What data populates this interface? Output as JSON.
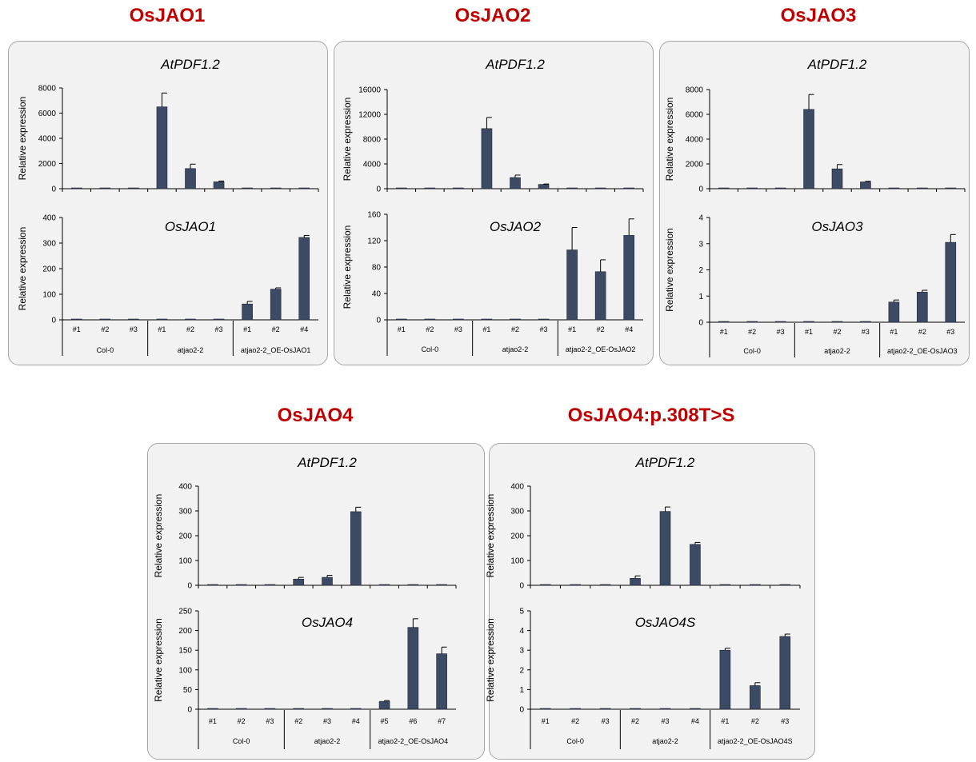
{
  "colors": {
    "title": "#c00000",
    "bar": "#3d4a63",
    "frame_bg": "#f2f2f2",
    "frame_border": "#a6a6a6"
  },
  "chart_data": [
    {
      "type": "bar",
      "title": "OsJAO1",
      "group_labels": [
        "Col-0",
        "atjao2-2",
        "atjao2-2_OE-OsJAO1"
      ],
      "categories": [
        "#1",
        "#2",
        "#3",
        "#1",
        "#2",
        "#3",
        "#1",
        "#2",
        "#4"
      ],
      "subplots": [
        {
          "title": "AtPDF1.2",
          "ylabel": "Relative expression",
          "ylim": [
            0,
            8000
          ],
          "yticks": [
            "0",
            "2000",
            "4000",
            "6000",
            "8000"
          ],
          "values": [
            30,
            30,
            30,
            6500,
            1600,
            550,
            20,
            20,
            20
          ],
          "errors": [
            0,
            0,
            0,
            1100,
            350,
            60,
            0,
            0,
            0
          ]
        },
        {
          "title": "OsJAO1",
          "ylabel": "Relative expression",
          "ylim": [
            0,
            400
          ],
          "yticks": [
            "0",
            "100",
            "200",
            "300",
            "400"
          ],
          "values": [
            1,
            1,
            1,
            1,
            1,
            1,
            62,
            120,
            322
          ],
          "errors": [
            0,
            0,
            0,
            0,
            0,
            0,
            10,
            5,
            8
          ]
        }
      ]
    },
    {
      "type": "bar",
      "title": "OsJAO2",
      "group_labels": [
        "Col-0",
        "atjao2-2",
        "atjao2-2_OE-OsJAO2"
      ],
      "categories": [
        "#1",
        "#2",
        "#3",
        "#1",
        "#2",
        "#3",
        "#1",
        "#2",
        "#4"
      ],
      "subplots": [
        {
          "title": "AtPDF1.2",
          "ylabel": "Relative expression",
          "ylim": [
            0,
            16000
          ],
          "yticks": [
            "0",
            "4000",
            "8000",
            "12000",
            "16000"
          ],
          "values": [
            60,
            60,
            60,
            9700,
            1800,
            700,
            40,
            40,
            40
          ],
          "errors": [
            0,
            0,
            0,
            1800,
            400,
            60,
            0,
            0,
            0
          ]
        },
        {
          "title": "OsJAO2",
          "ylabel": "Relative expression",
          "ylim": [
            0,
            160
          ],
          "yticks": [
            "0",
            "40",
            "80",
            "120",
            "160"
          ],
          "values": [
            1,
            1,
            1,
            1,
            1,
            1,
            106,
            73,
            128
          ],
          "errors": [
            0,
            0,
            0,
            0,
            0,
            0,
            34,
            18,
            25
          ]
        }
      ]
    },
    {
      "type": "bar",
      "title": "OsJAO3",
      "group_labels": [
        "Col-0",
        "atjao2-2",
        "atjao2-2_OE-OsJAO3"
      ],
      "categories": [
        "#1",
        "#2",
        "#3",
        "#1",
        "#2",
        "#3",
        "#1",
        "#2",
        "#3"
      ],
      "subplots": [
        {
          "title": "AtPDF1.2",
          "ylabel": "Relative expression",
          "ylim": [
            0,
            8000
          ],
          "yticks": [
            "0",
            "2000",
            "4000",
            "6000",
            "8000"
          ],
          "values": [
            30,
            30,
            30,
            6400,
            1600,
            550,
            20,
            20,
            20
          ],
          "errors": [
            0,
            0,
            0,
            1200,
            350,
            50,
            0,
            0,
            0
          ]
        },
        {
          "title": "OsJAO3",
          "ylabel": "Relative expression",
          "ylim": [
            0,
            4
          ],
          "yticks": [
            "0",
            "1",
            "2",
            "3",
            "4"
          ],
          "values": [
            0.01,
            0.01,
            0.01,
            0.01,
            0.01,
            0.01,
            0.77,
            1.15,
            3.05
          ],
          "errors": [
            0,
            0,
            0,
            0,
            0,
            0,
            0.08,
            0.07,
            0.3
          ]
        }
      ]
    },
    {
      "type": "bar",
      "title": "OsJAO4",
      "group_labels": [
        "Col-0",
        "atjao2-2",
        "atjao2-2_OE-OsJAO4"
      ],
      "categories": [
        "#1",
        "#2",
        "#3",
        "#2",
        "#3",
        "#4",
        "#5",
        "#6",
        "#7"
      ],
      "subplots": [
        {
          "title": "AtPDF1.2",
          "ylabel": "Relative expression",
          "ylim": [
            0,
            400
          ],
          "yticks": [
            "0",
            "100",
            "200",
            "300",
            "400"
          ],
          "values": [
            3,
            3,
            3,
            25,
            32,
            297,
            2,
            2,
            2
          ],
          "errors": [
            0,
            0,
            0,
            7,
            8,
            18,
            0,
            0,
            0
          ]
        },
        {
          "title": "OsJAO4",
          "ylabel": "Relative expression",
          "ylim": [
            0,
            250
          ],
          "yticks": [
            "0",
            "50",
            "100",
            "150",
            "200",
            "250"
          ],
          "values": [
            0,
            0,
            0,
            0,
            0,
            0,
            20,
            208,
            141
          ],
          "errors": [
            0,
            0,
            0,
            0,
            0,
            0,
            2,
            22,
            17
          ]
        }
      ]
    },
    {
      "type": "bar",
      "title": "OsJAO4:p.308T>S",
      "group_labels": [
        "Col-0",
        "atjao2-2",
        "atjao2-2_OE-OsJAO4S"
      ],
      "categories": [
        "#1",
        "#2",
        "#3",
        "#2",
        "#3",
        "#4",
        "#1",
        "#2",
        "#3"
      ],
      "subplots": [
        {
          "title": "AtPDF1.2",
          "ylabel": "Relative expression",
          "ylim": [
            0,
            400
          ],
          "yticks": [
            "0",
            "100",
            "200",
            "300",
            "400"
          ],
          "values": [
            3,
            3,
            3,
            28,
            298,
            165,
            2,
            2,
            2
          ],
          "errors": [
            0,
            0,
            0,
            10,
            18,
            8,
            0,
            0,
            0
          ]
        },
        {
          "title": "OsJAO4S",
          "ylabel": "Relative expression",
          "ylim": [
            0,
            5
          ],
          "yticks": [
            "0",
            "1",
            "2",
            "3",
            "4",
            "5"
          ],
          "values": [
            0.02,
            0.02,
            0.02,
            0.02,
            0.02,
            0.02,
            3.0,
            1.2,
            3.7
          ],
          "errors": [
            0,
            0,
            0,
            0,
            0,
            0,
            0.1,
            0.15,
            0.12
          ]
        }
      ]
    }
  ]
}
